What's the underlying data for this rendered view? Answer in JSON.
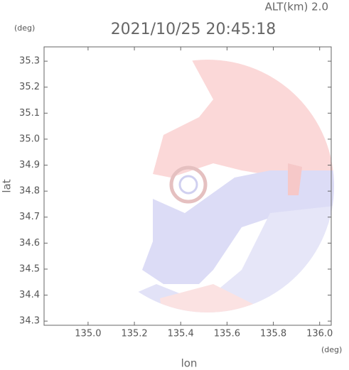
{
  "chart_data": {
    "type": "radar",
    "title": "2021/10/25 20:45:18",
    "subtitle": "ALT(km) 2.0",
    "x_label": "lon",
    "y_label": "lat",
    "x_unit": "(deg)",
    "y_unit": "(deg)",
    "xlim": [
      134.81,
      136.05
    ],
    "xticks": [
      {
        "value": 135.0,
        "label": "135.0"
      },
      135.2,
      135.4,
      135.6,
      135.8,
      {
        "value": 136.0,
        "label": "136.0"
      }
    ],
    "ylim": [
      34.284,
      35.355
    ],
    "yticks": [
      35.3,
      35.2,
      35.1,
      {
        "value": 35.0,
        "label": "35.0"
      },
      34.9,
      34.8,
      34.7,
      34.6,
      34.5,
      34.4,
      34.3
    ]
  }
}
